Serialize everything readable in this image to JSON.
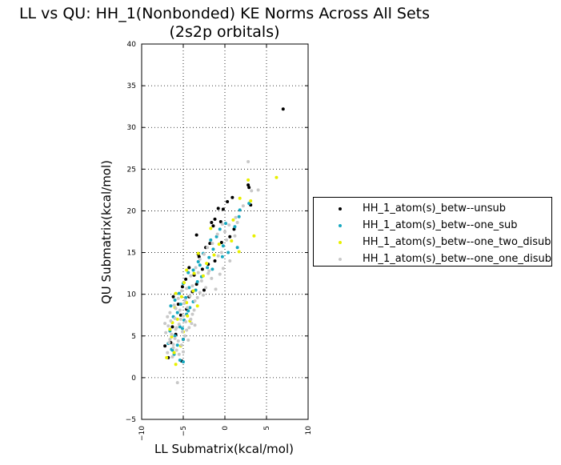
{
  "chart_data": {
    "type": "scatter",
    "title_lines": [
      "LL vs QU: HH_1(Nonbonded) KE Norms Across All Sets",
      "(2s2p orbitals)"
    ],
    "xlabel": "LL Submatrix(kcal/mol)",
    "ylabel": "QU Submatrix(kcal/mol)",
    "xlim": [
      -10,
      10
    ],
    "ylim": [
      -5,
      40
    ],
    "x_ticks": [
      -10,
      -5,
      0,
      5,
      10
    ],
    "y_ticks": [
      -5,
      0,
      5,
      10,
      15,
      20,
      25,
      30,
      35,
      40
    ],
    "grid": true,
    "legend_position": "right",
    "series": [
      {
        "name": "HH_1_atom(s)_betw--unsub",
        "color": "#000000",
        "points": [
          [
            7.0,
            32.2
          ],
          [
            2.8,
            23.1
          ],
          [
            2.9,
            22.8
          ],
          [
            3.1,
            20.7
          ],
          [
            0.9,
            21.6
          ],
          [
            0.3,
            21.1
          ],
          [
            -0.2,
            20.2
          ],
          [
            -0.8,
            20.3
          ],
          [
            -1.2,
            19.0
          ],
          [
            -0.5,
            18.7
          ],
          [
            -1.4,
            18.2
          ],
          [
            -1.6,
            18.6
          ],
          [
            -3.4,
            17.1
          ],
          [
            -0.4,
            16.2
          ],
          [
            -1.8,
            16.1
          ],
          [
            -2.3,
            15.6
          ],
          [
            -3.1,
            14.5
          ],
          [
            -3.2,
            14.8
          ],
          [
            -1.2,
            14.0
          ],
          [
            -2.0,
            13.6
          ],
          [
            -4.3,
            13.2
          ],
          [
            -3.7,
            12.3
          ],
          [
            -4.7,
            11.8
          ],
          [
            -5.1,
            10.9
          ],
          [
            -3.4,
            11.2
          ],
          [
            -2.5,
            10.5
          ],
          [
            -4.3,
            9.7
          ],
          [
            -6.2,
            9.7
          ],
          [
            -5.6,
            8.8
          ],
          [
            -4.6,
            8.2
          ],
          [
            -5.3,
            7.5
          ],
          [
            -6.3,
            6.1
          ],
          [
            -5.9,
            5.2
          ],
          [
            -5.0,
            4.6
          ],
          [
            -6.5,
            4.2
          ],
          [
            -7.2,
            3.8
          ],
          [
            -6.8,
            2.4
          ],
          [
            -5.2,
            2.0
          ],
          [
            0.6,
            16.9
          ],
          [
            1.1,
            17.8
          ],
          [
            -2.7,
            13.0
          ],
          [
            -3.9,
            10.3
          ]
        ]
      },
      {
        "name": "HH_1_atom(s)_betw--one_sub",
        "color": "#17a8c0",
        "points": [
          [
            1.8,
            20.1
          ],
          [
            1.7,
            19.3
          ],
          [
            2.9,
            20.9
          ],
          [
            1.2,
            18.1
          ],
          [
            0.1,
            18.5
          ],
          [
            -0.6,
            17.8
          ],
          [
            -1.7,
            16.5
          ],
          [
            -1.0,
            16.9
          ],
          [
            -1.4,
            15.4
          ],
          [
            -0.2,
            15.8
          ],
          [
            1.5,
            15.6
          ],
          [
            -2.6,
            14.9
          ],
          [
            -3.2,
            13.9
          ],
          [
            -1.9,
            14.4
          ],
          [
            -2.1,
            13.2
          ],
          [
            -3.8,
            12.9
          ],
          [
            -4.4,
            12.6
          ],
          [
            -2.8,
            12.1
          ],
          [
            -5.0,
            11.3
          ],
          [
            -4.3,
            10.8
          ],
          [
            -3.5,
            10.5
          ],
          [
            -5.5,
            10.1
          ],
          [
            -4.7,
            9.6
          ],
          [
            -6.0,
            9.3
          ],
          [
            -5.3,
            8.8
          ],
          [
            -6.5,
            8.6
          ],
          [
            -4.2,
            8.4
          ],
          [
            -5.7,
            7.8
          ],
          [
            -6.2,
            7.3
          ],
          [
            -4.9,
            6.9
          ],
          [
            -5.4,
            6.1
          ],
          [
            -6.6,
            5.6
          ],
          [
            -6.0,
            5.0
          ],
          [
            -5.0,
            4.6
          ],
          [
            -6.8,
            4.1
          ],
          [
            -5.7,
            3.9
          ],
          [
            -6.4,
            3.4
          ],
          [
            -6.1,
            2.8
          ],
          [
            -5.4,
            2.1
          ],
          [
            -5.0,
            1.9
          ],
          [
            -6.3,
            3.3
          ],
          [
            -3.0,
            13.5
          ],
          [
            -0.3,
            14.5
          ],
          [
            0.4,
            15.0
          ],
          [
            -1.5,
            13.0
          ],
          [
            -4.4,
            8.0
          ],
          [
            -3.8,
            9.1
          ],
          [
            -5.1,
            5.9
          ],
          [
            -4.6,
            7.6
          ],
          [
            -3.3,
            11.5
          ]
        ]
      },
      {
        "name": "HH_1_atom(s)_betw--one_two_disub",
        "color": "#e8f000",
        "points": [
          [
            6.2,
            24.0
          ],
          [
            2.8,
            23.7
          ],
          [
            3.1,
            21.2
          ],
          [
            1.8,
            21.5
          ],
          [
            3.5,
            17.0
          ],
          [
            1.0,
            18.9
          ],
          [
            0.8,
            16.4
          ],
          [
            1.7,
            15.1
          ],
          [
            -0.7,
            16.0
          ],
          [
            -1.7,
            17.9
          ],
          [
            -3.2,
            14.9
          ],
          [
            -2.2,
            13.7
          ],
          [
            -4.6,
            12.9
          ],
          [
            -3.7,
            12.5
          ],
          [
            -4.9,
            11.4
          ],
          [
            -5.9,
            10.1
          ],
          [
            -3.8,
            10.4
          ],
          [
            -5.2,
            9.7
          ],
          [
            -6.0,
            8.4
          ],
          [
            -4.5,
            7.4
          ],
          [
            -6.3,
            6.6
          ],
          [
            -5.0,
            5.5
          ],
          [
            -6.4,
            4.9
          ],
          [
            -5.3,
            3.8
          ],
          [
            -6.1,
            3.0
          ],
          [
            -7.0,
            2.4
          ],
          [
            -5.9,
            1.6
          ],
          [
            -4.2,
            6.8
          ],
          [
            -3.3,
            8.6
          ],
          [
            -4.6,
            9.0
          ],
          [
            -5.7,
            7.0
          ],
          [
            -2.6,
            12.2
          ],
          [
            -1.3,
            14.7
          ],
          [
            -6.6,
            5.8
          ]
        ]
      },
      {
        "name": "HH_1_atom(s)_betw--one_one_disub",
        "color": "#c8c8c8",
        "points": [
          [
            2.8,
            25.9
          ],
          [
            4.0,
            22.5
          ],
          [
            3.2,
            22.4
          ],
          [
            2.2,
            20.6
          ],
          [
            1.3,
            19.2
          ],
          [
            0.5,
            18.3
          ],
          [
            -0.3,
            18.4
          ],
          [
            -0.9,
            17.2
          ],
          [
            -1.5,
            16.1
          ],
          [
            0.0,
            17.5
          ],
          [
            1.2,
            17.0
          ],
          [
            -2.1,
            15.6
          ],
          [
            -2.5,
            14.8
          ],
          [
            -0.8,
            14.6
          ],
          [
            -3.0,
            14.2
          ],
          [
            -1.9,
            12.8
          ],
          [
            -3.5,
            13.2
          ],
          [
            -0.2,
            13.1
          ],
          [
            -4.1,
            12.2
          ],
          [
            -2.8,
            11.6
          ],
          [
            -3.9,
            11.0
          ],
          [
            -4.6,
            10.7
          ],
          [
            -3.0,
            10.2
          ],
          [
            -5.2,
            10.4
          ],
          [
            -4.2,
            9.8
          ],
          [
            -5.6,
            9.5
          ],
          [
            -3.6,
            9.2
          ],
          [
            -4.9,
            8.9
          ],
          [
            -6.1,
            8.7
          ],
          [
            -4.5,
            8.4
          ],
          [
            -5.4,
            8.1
          ],
          [
            -6.6,
            7.8
          ],
          [
            -3.9,
            7.6
          ],
          [
            -5.0,
            7.4
          ],
          [
            -6.0,
            7.1
          ],
          [
            -4.7,
            6.7
          ],
          [
            -5.5,
            6.4
          ],
          [
            -6.8,
            6.2
          ],
          [
            -4.3,
            6.0
          ],
          [
            -5.9,
            5.8
          ],
          [
            -5.1,
            5.5
          ],
          [
            -6.4,
            5.2
          ],
          [
            -4.8,
            5.0
          ],
          [
            -6.0,
            4.7
          ],
          [
            -5.6,
            4.4
          ],
          [
            -6.7,
            4.2
          ],
          [
            -5.2,
            3.9
          ],
          [
            -6.2,
            3.6
          ],
          [
            -5.8,
            3.3
          ],
          [
            -6.9,
            3.0
          ],
          [
            -5.5,
            2.8
          ],
          [
            -6.3,
            2.5
          ],
          [
            -4.4,
            4.5
          ],
          [
            -3.7,
            8.1
          ],
          [
            -2.3,
            10.8
          ],
          [
            -1.6,
            11.9
          ],
          [
            -0.6,
            12.4
          ],
          [
            0.6,
            14.0
          ],
          [
            -4.0,
            6.5
          ],
          [
            -5.3,
            7.0
          ],
          [
            -6.5,
            6.8
          ],
          [
            -5.8,
            6.0
          ],
          [
            -7.1,
            5.4
          ],
          [
            -6.2,
            4.0
          ],
          [
            -5.0,
            3.1
          ],
          [
            -5.7,
            -0.6
          ],
          [
            -3.3,
            9.6
          ],
          [
            -4.8,
            9.3
          ],
          [
            -5.9,
            8.3
          ],
          [
            -6.9,
            7.3
          ],
          [
            -4.1,
            7.0
          ],
          [
            -4.6,
            5.7
          ],
          [
            -3.6,
            6.3
          ],
          [
            -6.6,
            4.6
          ],
          [
            -7.2,
            6.5
          ],
          [
            -2.0,
            12.5
          ],
          [
            -3.2,
            12.6
          ],
          [
            -2.6,
            9.9
          ],
          [
            -1.1,
            10.6
          ],
          [
            1.5,
            18.6
          ],
          [
            0.2,
            16.5
          ],
          [
            -0.4,
            15.0
          ]
        ]
      }
    ]
  }
}
